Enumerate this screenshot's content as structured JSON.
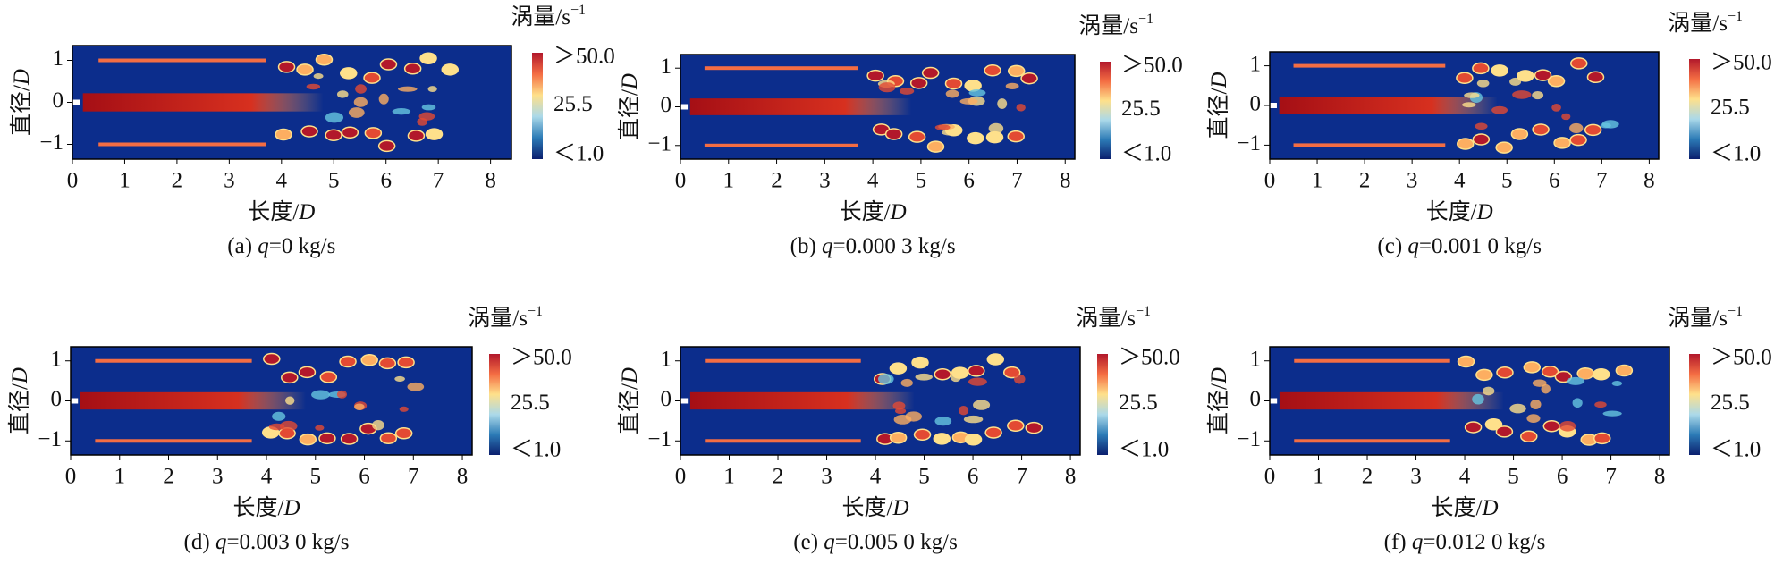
{
  "panels": [
    {
      "id": "(a)",
      "var": "q",
      "rest": "=0 kg/s",
      "x_label": "长度/",
      "x_label_var": "D",
      "y_label": "直径/",
      "y_label_var": "D",
      "x_ticks": [
        "0",
        "1",
        "2",
        "3",
        "4",
        "5",
        "6",
        "7",
        "8"
      ],
      "y_ticks": [
        "1",
        "0",
        "−1"
      ],
      "colorbar": {
        "title": "涡量/s",
        "title_sup": "−1",
        "labels": [
          "＞50.0",
          "25.5",
          "＜1.0"
        ]
      }
    },
    {
      "id": "(b)",
      "var": "q",
      "rest": "=0.000 3 kg/s",
      "x_label": "长度/",
      "x_label_var": "D",
      "y_label": "直径/",
      "y_label_var": "D",
      "x_ticks": [
        "0",
        "1",
        "2",
        "3",
        "4",
        "5",
        "6",
        "7",
        "8"
      ],
      "y_ticks": [
        "1",
        "0",
        "−1"
      ],
      "colorbar": {
        "title": "涡量/s",
        "title_sup": "−1",
        "labels": [
          "＞50.0",
          "25.5",
          "＜1.0"
        ]
      }
    },
    {
      "id": "(c)",
      "var": "q",
      "rest": "=0.001 0 kg/s",
      "x_label": "长度/",
      "x_label_var": "D",
      "y_label": "直径/",
      "y_label_var": "D",
      "x_ticks": [
        "0",
        "1",
        "2",
        "3",
        "4",
        "5",
        "6",
        "7",
        "8"
      ],
      "y_ticks": [
        "1",
        "0",
        "−1"
      ],
      "colorbar": {
        "title": "涡量/s",
        "title_sup": "−1",
        "labels": [
          "＞50.0",
          "25.5",
          "＜1.0"
        ]
      }
    },
    {
      "id": "(d)",
      "var": "q",
      "rest": "=0.003 0 kg/s",
      "x_label": "长度/",
      "x_label_var": "D",
      "y_label": "直径/",
      "y_label_var": "D",
      "x_ticks": [
        "0",
        "1",
        "2",
        "3",
        "4",
        "5",
        "6",
        "7",
        "8"
      ],
      "y_ticks": [
        "1",
        "0",
        "−1"
      ],
      "colorbar": {
        "title": "涡量/s",
        "title_sup": "−1",
        "labels": [
          "＞50.0",
          "25.5",
          "＜1.0"
        ]
      }
    },
    {
      "id": "(e)",
      "var": "q",
      "rest": "=0.005 0 kg/s",
      "x_label": "长度/",
      "x_label_var": "D",
      "y_label": "直径/",
      "y_label_var": "D",
      "x_ticks": [
        "0",
        "1",
        "2",
        "3",
        "4",
        "5",
        "6",
        "7",
        "8"
      ],
      "y_ticks": [
        "1",
        "0",
        "−1"
      ],
      "colorbar": {
        "title": "涡量/s",
        "title_sup": "−1",
        "labels": [
          "＞50.0",
          "25.5",
          "＜1.0"
        ]
      }
    },
    {
      "id": "(f)",
      "var": "q",
      "rest": "=0.012 0 kg/s",
      "x_label": "长度/",
      "x_label_var": "D",
      "y_label": "直径/",
      "y_label_var": "D",
      "x_ticks": [
        "0",
        "1",
        "2",
        "3",
        "4",
        "5",
        "6",
        "7",
        "8"
      ],
      "y_ticks": [
        "1",
        "0",
        "−1"
      ],
      "colorbar": {
        "title": "涡量/s",
        "title_sup": "−1",
        "labels": [
          "＞50.0",
          "25.5",
          "＜1.0"
        ]
      }
    }
  ]
}
